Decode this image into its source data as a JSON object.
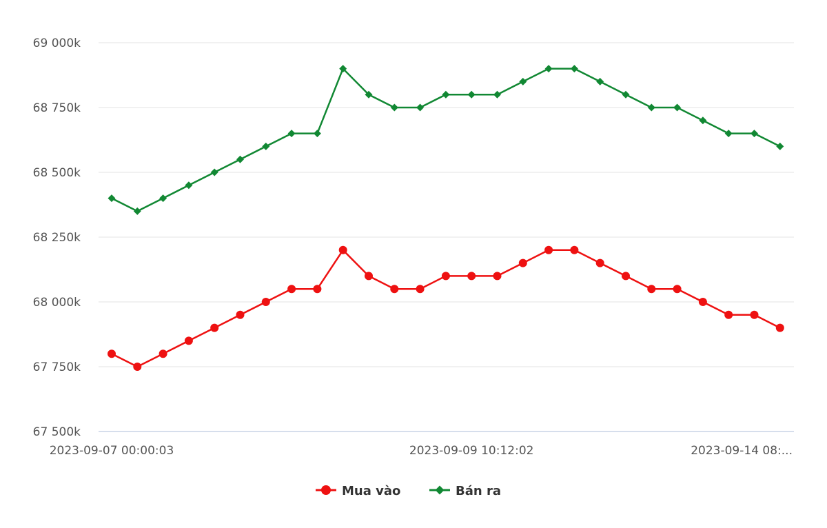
{
  "chart_data": {
    "type": "line",
    "x": [
      "2023-09-07 00:00:03",
      "",
      "",
      "",
      "",
      "",
      "",
      "",
      "",
      "",
      "",
      "",
      "",
      "",
      "2023-09-09 10:12:02",
      "",
      "",
      "",
      "",
      "",
      "",
      "",
      "",
      "",
      "",
      "",
      "2023-09-14 08:..."
    ],
    "x_tick_labels": [
      "2023-09-07 00:00:03",
      "2023-09-09 10:12:02",
      "2023-09-14 08:..."
    ],
    "y_ticks": [
      67500,
      67750,
      68000,
      68250,
      68500,
      68750,
      69000
    ],
    "y_tick_labels": [
      "67 500k",
      "67 750k",
      "68 000k",
      "68 250k",
      "68 500k",
      "68 750k",
      "69 000k"
    ],
    "ylim": [
      67500,
      69000
    ],
    "grid": true,
    "legend_position": "bottom-center",
    "series": [
      {
        "name": "Mua vào",
        "color": "#ee1111",
        "marker": "circle",
        "values": [
          67800,
          67750,
          67800,
          67850,
          67900,
          67950,
          68000,
          68050,
          68050,
          68200,
          68100,
          68050,
          68050,
          68100,
          68100,
          68100,
          68150,
          68200,
          68200,
          68150,
          68100,
          68050,
          68050,
          68000,
          67950,
          67950,
          67900
        ]
      },
      {
        "name": "Bán ra",
        "color": "#118833",
        "marker": "diamond",
        "values": [
          68400,
          68350,
          68400,
          68450,
          68500,
          68550,
          68600,
          68650,
          68650,
          68900,
          68800,
          68750,
          68750,
          68800,
          68800,
          68800,
          68850,
          68900,
          68900,
          68850,
          68800,
          68750,
          68750,
          68700,
          68650,
          68650,
          68600
        ]
      }
    ]
  }
}
